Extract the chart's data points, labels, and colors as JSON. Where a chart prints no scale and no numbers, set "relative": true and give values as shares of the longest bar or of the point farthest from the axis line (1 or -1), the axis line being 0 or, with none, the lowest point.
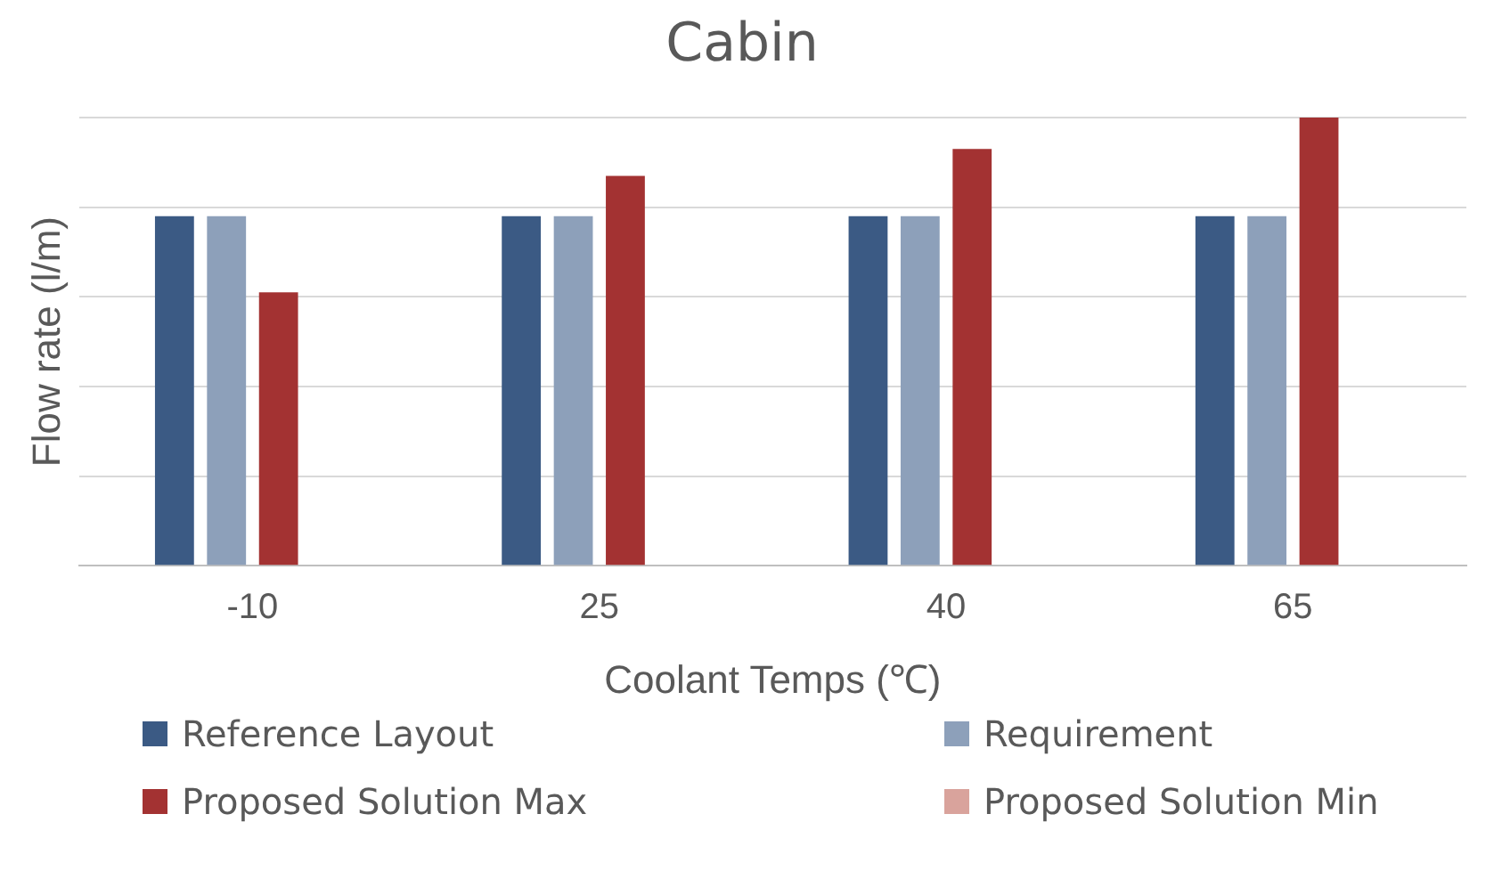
{
  "chart_data": {
    "type": "bar",
    "title": "Cabin",
    "xlabel": "Coolant Temps (℃)",
    "ylabel": "Flow rate (l/m)",
    "categories": [
      "-10",
      "25",
      "40",
      "65"
    ],
    "relative": true,
    "grid": "y",
    "legend": "bottom",
    "series": [
      {
        "name": "Reference Layout",
        "color": "#3b5a84",
        "values": [
          0.78,
          0.78,
          0.78,
          0.78
        ]
      },
      {
        "name": "Requirement",
        "color": "#8da0ba",
        "values": [
          0.78,
          0.78,
          0.78,
          0.78
        ]
      },
      {
        "name": "Proposed Solution Max",
        "color": "#a33232",
        "values": [
          0.61,
          0.87,
          0.93,
          1
        ]
      },
      {
        "name": "Proposed Solution Min",
        "color": "#d9a39c",
        "values": [
          null,
          null,
          null,
          null
        ]
      }
    ]
  }
}
